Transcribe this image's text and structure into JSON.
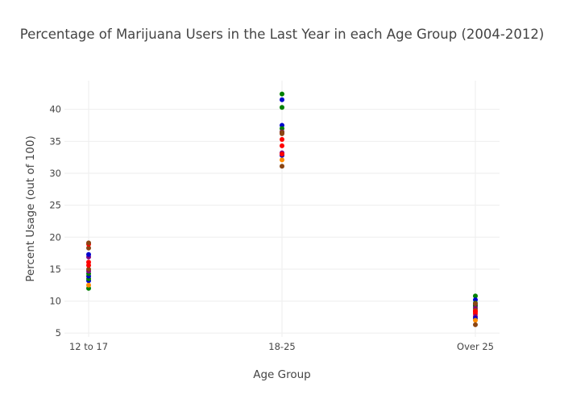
{
  "chart_data": {
    "type": "scatter",
    "title": "Percentage of Marijuana Users in the Last Year in each Age Group (2004-2012)",
    "xlabel": "Age Group",
    "ylabel": "Percent Usage (out of 100)",
    "categories": [
      "12 to 17",
      "18-25",
      "Over 25"
    ],
    "ylim": [
      4.4,
      44.5
    ],
    "yticks": [
      5,
      10,
      15,
      20,
      25,
      30,
      35,
      40
    ],
    "grid": true,
    "legend": "none",
    "series": [
      {
        "color": "#008000",
        "values": [
          12.0,
          42.4,
          10.8
        ]
      },
      {
        "color": "#0000cc",
        "values": [
          13.2,
          41.5,
          10.2
        ]
      },
      {
        "color": "#008000",
        "values": [
          13.5,
          40.3,
          9.7
        ]
      },
      {
        "color": "#0000cc",
        "values": [
          13.9,
          37.5,
          9.4
        ]
      },
      {
        "color": "#008000",
        "values": [
          14.3,
          37.0,
          9.2
        ]
      },
      {
        "color": "#800080",
        "values": [
          14.7,
          36.5,
          8.9
        ]
      },
      {
        "color": "#8B4513",
        "values": [
          15.0,
          36.2,
          8.6
        ]
      },
      {
        "color": "#ff0000",
        "values": [
          15.6,
          35.3,
          8.3
        ]
      },
      {
        "color": "#ff0000",
        "values": [
          16.1,
          34.3,
          8.0
        ]
      },
      {
        "color": "#800080",
        "values": [
          16.9,
          33.2,
          7.6
        ]
      },
      {
        "color": "#0000cc",
        "values": [
          17.3,
          32.8,
          7.3
        ]
      },
      {
        "color": "#ff8c00",
        "values": [
          12.5,
          32.1,
          7.0
        ]
      },
      {
        "color": "#8B4513",
        "values": [
          18.3,
          31.1,
          6.3
        ]
      },
      {
        "color": "#ff0000",
        "values": [
          18.9,
          33.0,
          8.4
        ]
      },
      {
        "color": "#8B4513",
        "values": [
          19.1,
          36.4,
          9.6
        ]
      }
    ]
  }
}
